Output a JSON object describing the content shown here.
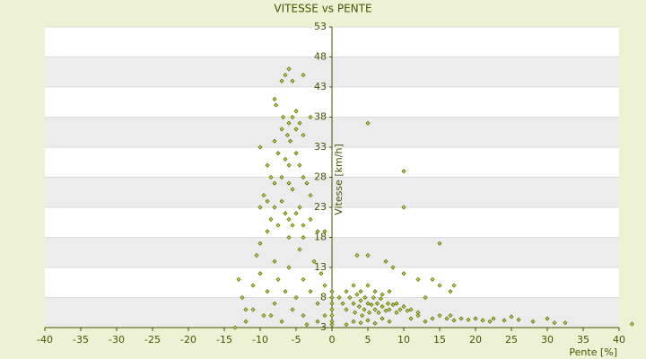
{
  "chart_data": {
    "type": "scatter",
    "title": "VITESSE vs PENTE",
    "x_label": "Pente [%]",
    "y_label": "Vitesse [km/h]",
    "color": "#5f6e00",
    "xlim": [
      -40,
      40
    ],
    "xticks": [
      -40,
      -35,
      -30,
      -25,
      -20,
      -15,
      -10,
      -5,
      0,
      5,
      10,
      15,
      20,
      25,
      30,
      35,
      40
    ],
    "ylim": [
      3,
      53
    ],
    "yticks": [
      3,
      8,
      13,
      18,
      23,
      28,
      33,
      38,
      43,
      48,
      53
    ],
    "grid": true,
    "x": [
      -8,
      -7.8,
      -7,
      -6.5,
      -6,
      -5.5,
      -4,
      -6.8,
      -6,
      -5.5,
      -5,
      -4.5,
      -7,
      -6.2,
      -5.8,
      -5,
      -4,
      -3,
      -8,
      -7.5,
      -6.5,
      -6,
      -5,
      -4.5,
      -10,
      -9,
      -8.5,
      -8,
      -7,
      -6,
      -5.5,
      -4,
      -3.5,
      -9.5,
      -9,
      -8,
      -7,
      -6.5,
      -6,
      -5,
      -4.5,
      -3,
      -10,
      -8.5,
      -7.5,
      -5.5,
      -4,
      -3,
      -2,
      -9,
      -6,
      -4,
      -1,
      -13,
      -12.5,
      -12,
      -11,
      -10.5,
      -10,
      -9,
      -9.5,
      -8,
      -8,
      -7.5,
      -7,
      -6.5,
      -6,
      -5.5,
      -5,
      -4.5,
      -4,
      -4,
      -3,
      -2.5,
      -2,
      -2,
      -1.5,
      -1,
      -1,
      -12,
      -11,
      -10,
      -8.5,
      -3.5,
      -13.5,
      0,
      0,
      0,
      0,
      0,
      0,
      0,
      1,
      1.5,
      2,
      2,
      2.5,
      3,
      3,
      3.2,
      3.5,
      3.8,
      4,
      4,
      4.2,
      4.5,
      4.6,
      5,
      5,
      5.2,
      5.5,
      5.8,
      6,
      6,
      6.3,
      6.5,
      6.8,
      7,
      7,
      7.5,
      7.8,
      8,
      8,
      8.5,
      9,
      9,
      9.5,
      10,
      10.5,
      11,
      12,
      3,
      4,
      5,
      6,
      7,
      8,
      2,
      3.5,
      5,
      7.5,
      8.5,
      10,
      12,
      14,
      15,
      16.5,
      17,
      13,
      11,
      12,
      13,
      14,
      15,
      16,
      16.5,
      17,
      18,
      19,
      20,
      21,
      22,
      22.5,
      24,
      25,
      26,
      28,
      30,
      31,
      32.5,
      41.8,
      5,
      10,
      10,
      15
    ],
    "values": [
      41,
      40,
      44,
      45,
      46,
      44,
      45,
      38,
      37,
      38,
      39,
      37,
      36,
      35,
      34,
      36,
      35,
      38,
      34,
      32,
      31,
      30,
      32,
      30,
      33,
      30,
      28,
      27,
      28,
      27,
      26,
      28,
      27,
      25,
      24,
      23,
      24,
      22,
      21,
      22,
      23,
      25,
      23,
      21,
      20,
      20,
      20,
      21,
      19,
      19,
      18,
      18,
      19,
      11,
      8,
      6,
      10,
      15,
      12,
      9,
      5,
      14,
      7,
      11,
      4,
      9,
      13,
      6,
      8,
      16,
      11,
      5,
      9,
      14,
      7,
      4,
      12,
      10,
      5,
      4,
      6,
      17,
      5,
      3.5,
      3,
      5,
      6,
      7,
      8,
      9,
      3.5,
      4,
      8,
      7,
      9,
      6,
      8,
      7,
      10,
      5.5,
      8.5,
      6.5,
      7.5,
      9,
      5,
      6,
      8,
      7,
      10,
      5.5,
      6.8,
      8,
      6,
      9,
      7,
      5.5,
      7.8,
      6.5,
      8.5,
      5.8,
      7,
      6,
      9,
      6.8,
      5.5,
      7,
      6,
      6.5,
      5.8,
      6,
      5.5,
      4,
      3.8,
      4.2,
      3.7,
      4.5,
      4,
      3.5,
      15,
      15,
      14,
      13,
      12,
      11,
      11,
      10,
      9,
      10,
      8,
      4.5,
      5,
      4,
      4.5,
      5,
      4.5,
      5,
      4.2,
      4.5,
      4.3,
      4.5,
      4.2,
      4,
      4.5,
      4.2,
      4.8,
      4.3,
      4,
      4.5,
      3.8,
      3.8,
      3.6,
      37,
      29,
      23,
      17
    ]
  }
}
